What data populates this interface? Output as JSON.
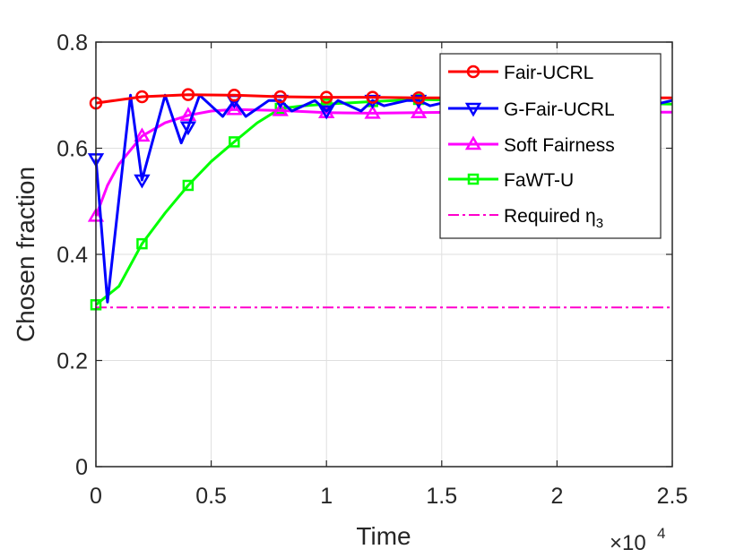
{
  "chart_data": {
    "type": "line",
    "xlabel": "Time",
    "ylabel": "Chosen fraction",
    "x_multiplier_label": "×10",
    "x_multiplier_exponent": "4",
    "xlim": [
      0,
      2.5
    ],
    "ylim": [
      0,
      0.8
    ],
    "xticks": [
      "0",
      "0.5",
      "1",
      "1.5",
      "2",
      "2.5"
    ],
    "yticks": [
      "0",
      "0.2",
      "0.4",
      "0.6",
      "0.8"
    ],
    "grid": true,
    "legend_position": "top-right",
    "series": [
      {
        "name": "Fair-UCRL",
        "color": "#ff0000",
        "marker": "circle",
        "line_style": "solid",
        "x": [
          0,
          0.2,
          0.4,
          0.6,
          0.8,
          1.0,
          1.2,
          1.4,
          1.6,
          1.8,
          2.0,
          2.2,
          2.4,
          2.5
        ],
        "y": [
          0.685,
          0.697,
          0.701,
          0.7,
          0.697,
          0.696,
          0.696,
          0.695,
          0.695,
          0.695,
          0.695,
          0.695,
          0.695,
          0.695
        ],
        "marker_x": [
          0,
          0.2,
          0.4,
          0.6,
          0.8,
          1.0,
          1.2,
          1.4
        ]
      },
      {
        "name": "G-Fair-UCRL",
        "color": "#0000ff",
        "marker": "triangle-down",
        "line_style": "solid",
        "x": [
          0,
          0.05,
          0.15,
          0.2,
          0.3,
          0.37,
          0.4,
          0.45,
          0.55,
          0.6,
          0.65,
          0.75,
          0.8,
          0.85,
          0.95,
          1.0,
          1.05,
          1.15,
          1.2,
          1.25,
          1.35,
          1.4,
          1.45,
          1.55,
          1.6,
          1.7,
          1.8,
          1.9,
          2.0,
          2.1,
          2.2,
          2.3,
          2.4,
          2.5
        ],
        "y": [
          0.58,
          0.31,
          0.7,
          0.54,
          0.7,
          0.61,
          0.64,
          0.7,
          0.66,
          0.69,
          0.66,
          0.69,
          0.69,
          0.67,
          0.69,
          0.67,
          0.69,
          0.67,
          0.69,
          0.68,
          0.69,
          0.69,
          0.68,
          0.69,
          0.68,
          0.69,
          0.68,
          0.69,
          0.68,
          0.69,
          0.68,
          0.69,
          0.68,
          0.69
        ],
        "marker_x": [
          0,
          0.2,
          0.4,
          0.6,
          0.8,
          1.0,
          1.2,
          1.4
        ],
        "marker_y": [
          0.58,
          0.54,
          0.64,
          0.69,
          0.69,
          0.67,
          0.69,
          0.69
        ]
      },
      {
        "name": "Soft Fairness",
        "color": "#ff00ff",
        "marker": "triangle-up",
        "line_style": "solid",
        "x": [
          0,
          0.05,
          0.1,
          0.2,
          0.3,
          0.4,
          0.5,
          0.6,
          0.8,
          1.0,
          1.2,
          1.4,
          1.6,
          1.8,
          2.0,
          2.2,
          2.4,
          2.5
        ],
        "y": [
          0.472,
          0.53,
          0.57,
          0.623,
          0.648,
          0.662,
          0.67,
          0.673,
          0.671,
          0.667,
          0.666,
          0.667,
          0.668,
          0.668,
          0.668,
          0.668,
          0.668,
          0.668
        ],
        "marker_x": [
          0,
          0.2,
          0.4,
          0.6,
          0.8,
          1.0,
          1.2,
          1.4
        ]
      },
      {
        "name": "FaWT-U",
        "color": "#00ff00",
        "marker": "square",
        "line_style": "solid",
        "x": [
          0,
          0.1,
          0.2,
          0.3,
          0.4,
          0.5,
          0.6,
          0.7,
          0.8,
          0.9,
          1.0,
          1.2,
          1.4,
          1.6,
          1.8,
          2.0,
          2.2,
          2.4,
          2.5
        ],
        "y": [
          0.305,
          0.34,
          0.42,
          0.478,
          0.53,
          0.575,
          0.612,
          0.648,
          0.675,
          0.68,
          0.683,
          0.688,
          0.692,
          0.69,
          0.688,
          0.686,
          0.685,
          0.684,
          0.683
        ],
        "marker_x": [
          0,
          0.2,
          0.4,
          0.6,
          0.8,
          1.0,
          1.2,
          1.4
        ]
      },
      {
        "name": "Required η",
        "name_subscript": "3",
        "color": "#ff00cc",
        "marker": "none",
        "line_style": "dashdot",
        "x": [
          0,
          2.5
        ],
        "y": [
          0.3,
          0.3
        ]
      }
    ]
  }
}
